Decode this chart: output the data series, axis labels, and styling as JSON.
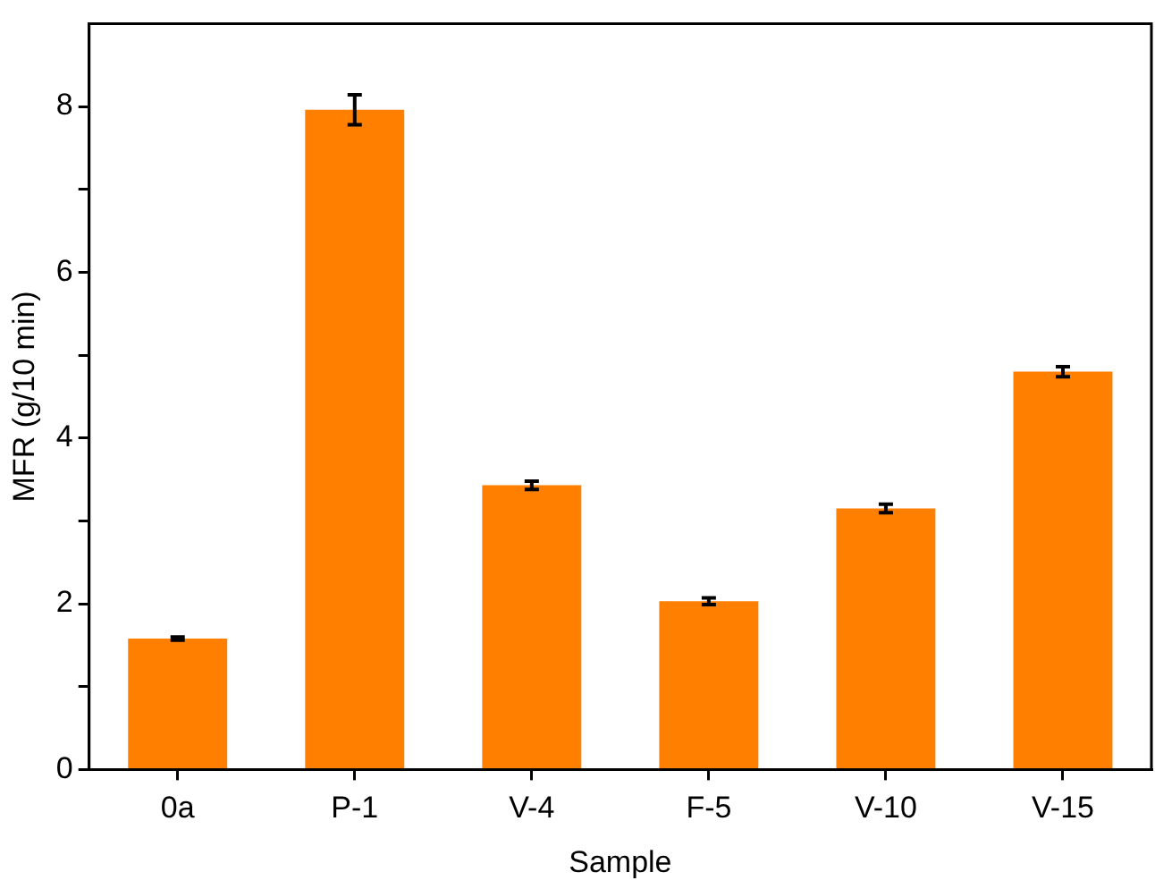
{
  "chart_data": {
    "type": "bar",
    "xlabel": "Sample",
    "ylabel": "MFR (g/10 min)",
    "categories": [
      "0a",
      "P-1",
      "V-4",
      "F-5",
      "V-10",
      "V-15"
    ],
    "values": [
      1.58,
      7.96,
      3.43,
      2.03,
      3.15,
      4.8
    ],
    "errors": [
      0.02,
      0.18,
      0.05,
      0.04,
      0.05,
      0.06
    ],
    "color": "#ff7f00",
    "ylim": [
      0,
      9
    ],
    "yticks": [
      0,
      {
        "value": 1,
        "label": null
      },
      2,
      {
        "value": 3,
        "label": null
      },
      4,
      {
        "value": 5,
        "label": null
      },
      6,
      {
        "value": 7,
        "label": null
      },
      8
    ],
    "grid": false,
    "legend": false
  }
}
